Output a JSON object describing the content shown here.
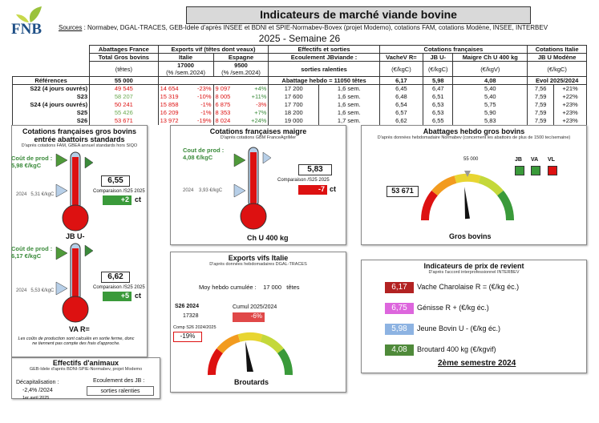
{
  "header": {
    "logo": "FNB",
    "title": "Indicateurs de marché viande bovine",
    "sources_label": "Sources",
    "sources": " : Normabev, DGAL-TRACES, GEB-Idele d'après INSEE et BDNI et SPIE-Normabev-Bovex (projet Modemo), cotations FAM, cotations Modène, INSEE, INTERBEV",
    "subtitle": "2025 - Semaine 26"
  },
  "table": {
    "h1": [
      "Abattages France",
      "Exports vif (têtes dont veaux)",
      "Effectifs et sorties",
      "Cotations françaises",
      "Cotations Italie"
    ],
    "h2": [
      "Total Gros bovins",
      "Italie",
      "Espagne",
      "Ecoulement JBviande :",
      "VacheV R=",
      "JB U-",
      "Maigre Ch U 400 kg",
      "JB U Modène"
    ],
    "h3": [
      "(têtes)",
      "17000",
      "9500",
      "sorties ralenties",
      "(€/kgC)",
      "(€/kgC)",
      "(€/kgV)",
      "(€/kgC)"
    ],
    "h3b": [
      "(% /sem.2024)",
      "(% /sem.2024)"
    ],
    "ref_label": "Références",
    "ref": [
      "55 000",
      "Abattage hebdo = 11050 têtes",
      "6,17",
      "5,98",
      "4,08",
      "Evol 2025/2024"
    ],
    "rows": [
      {
        "label": "S22 (4 jours ouvrés)",
        "abat": "49 545",
        "it": "14 654",
        "itp": "-23%",
        "es": "9 097",
        "esp": "+4%",
        "eff": "17 200",
        "sem": "1,6 sem.",
        "vr": "6,45",
        "jb": "6,47",
        "ma": "5,40",
        "mo": "7,56",
        "mop": "+21%"
      },
      {
        "label": "S23",
        "abat": "58 207",
        "it": "15 319",
        "itp": "-10%",
        "es": "8 005",
        "esp": "+11%",
        "eff": "17 600",
        "sem": "1,6 sem.",
        "vr": "6,48",
        "jb": "6,51",
        "ma": "5,40",
        "mo": "7,59",
        "mop": "+22%"
      },
      {
        "label": "S24 (4 jours ouvrés)",
        "abat": "50 241",
        "it": "15 858",
        "itp": "-1%",
        "es": "6 875",
        "esp": "-3%",
        "eff": "17 700",
        "sem": "1,6 sem.",
        "vr": "6,54",
        "jb": "6,53",
        "ma": "5,75",
        "mo": "7,59",
        "mop": "+23%"
      },
      {
        "label": "S25",
        "abat": "55 426",
        "it": "16 209",
        "itp": "-1%",
        "es": "8 353",
        "esp": "+7%",
        "eff": "18 200",
        "sem": "1,6 sem.",
        "vr": "6,57",
        "jb": "6,53",
        "ma": "5,90",
        "mo": "7,59",
        "mop": "+23%"
      },
      {
        "label": "S26",
        "abat": "53 671",
        "it": "13 972",
        "itp": "-19%",
        "es": "8 024",
        "esp": "+24%",
        "eff": "19 000",
        "sem": "1,7 sem.",
        "vr": "6,62",
        "jb": "6,55",
        "ma": "5,83",
        "mo": "7,59",
        "mop": "+23%"
      }
    ]
  },
  "cot_gb": {
    "title": "Cotations françaises gros bovins entrée abattoirs standards",
    "sub": "D'après cotations FAM, GBEA annuel standards hors SIQO",
    "jb": {
      "cout_label": "Coût de prod :",
      "cout": "5,98 €/kgC",
      "y2024": "2024",
      "v2024": "5,31 €/kgC",
      "val": "6,55",
      "comp": "Comparaison /S25 2025",
      "delta": "+2",
      "unit": "ct",
      "name": "JB U-"
    },
    "va": {
      "cout_label": "Coût de prod :",
      "cout": "6,17 €/kgC",
      "y2024": "2024",
      "v2024": "5,53 €/kgC",
      "val": "6,62",
      "comp": "Comparaison /S25 2025",
      "delta": "+5",
      "unit": "ct",
      "name": "VA R="
    },
    "note": "Les coûts de production sont calculés en sortie ferme, donc ne tiennent pas compte des frais d'approche."
  },
  "maigre": {
    "title": "Cotations françaises maigre",
    "sub": "D'après cotations GBM FranceAgriMer",
    "cout_label": "Cout de prod :",
    "cout": "4,08 €/kgC",
    "y2024": "2024",
    "v2024": "3,93 €/kgC",
    "val": "5,83",
    "comp": "Comparaison /S25 2025",
    "delta": "-7",
    "unit": "ct",
    "name": "Ch U 400 kg"
  },
  "abattages": {
    "title": "Abattages hebdo gros bovins",
    "sub": "D'après données hebdomadaire Normabev (concernent les abattoirs de plus de 1500 tec/semaine)",
    "ref": "55 000",
    "val": "53 671",
    "name": "Gros bovins",
    "legend": [
      "JB",
      "VA",
      "VL"
    ],
    "legend_colors": [
      "#3a9a3a",
      "#3a9a3a",
      "#d11"
    ],
    "gauge_fraction": 0.47
  },
  "exports": {
    "title": "Exports vifs  Italie",
    "sub": "D'après données hebdomadaires DGAL-TRACES",
    "moy_label": "Moy hebdo cumulée :",
    "moy": "17 000",
    "moy_unit": "têtes",
    "s26_label": "S26 2024",
    "s26": "17328",
    "cumul_label": "Cumul 2025/2024",
    "cumul": "-6%",
    "comp_label": "Comp S26 2024/2025",
    "comp": "-19%",
    "name": "Broutards"
  },
  "prix": {
    "title": "Indicateurs de prix de revient",
    "sub": "D'après l'accord interprofessionnel INTERBEV",
    "items": [
      {
        "val": "6,17",
        "label": "Vache Charolaise R = (€/kg éc.)",
        "color": "#b22222"
      },
      {
        "val": "6,75",
        "label": "Génisse R + (€/kg éc.)",
        "color": "#dd66dd"
      },
      {
        "val": "5,98",
        "label": "Jeune Bovin U - (€/kg éc.)",
        "color": "#8db3e2"
      },
      {
        "val": "4,08",
        "label": "Broutard 400 kg (€/kgvif)",
        "color": "#4f8a3a"
      }
    ],
    "semestre": "2ème semestre 2024"
  },
  "effectifs": {
    "title": "Effectifs d'animaux",
    "sub": "GEB-Idele d'après BDNI-SPIE-Normabev, projet Modemo",
    "decap_label": "Décapitalisation :",
    "decap": "-2,4% /2024",
    "date": "1er avril 2025",
    "ecoul_label": "Ecoulement des JB :",
    "ecoul": "sorties ralenties"
  }
}
